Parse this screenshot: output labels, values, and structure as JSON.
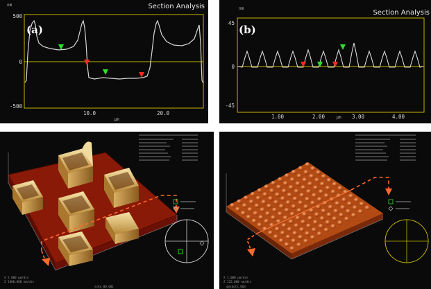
{
  "panels": {
    "a": {
      "header": "Section Analysis",
      "label": "(a)",
      "y_unit": "nm",
      "y_ticks": [
        "500",
        "0",
        "-500"
      ],
      "x_ticks": [
        "10.0",
        "20.0"
      ],
      "x_unit": "µm"
    },
    "b": {
      "header": "Section Analysis",
      "label": "(b)",
      "y_unit": "nm",
      "y_ticks": [
        "45",
        "0",
        "-45"
      ],
      "x_ticks": [
        "1.00",
        "2.00",
        "3.00",
        "4.00"
      ],
      "x_unit": "µm"
    },
    "c": {
      "scale_note_1": "X  5.000 µm/div",
      "scale_note_2": "Z  1000.000 nm/div",
      "file_name": "ssko_00.001"
    },
    "d": {
      "scale_note_1": "X  1.000 µm/div",
      "scale_note_2": "Z  125.000 nm/div",
      "file_name": "gnsdots.003"
    }
  },
  "colors": {
    "plot_bg": "#0a0a0a",
    "frame": "#c8b400",
    "trace": "#d8d8d8",
    "marker_green": "#2ee02e",
    "marker_red": "#ff2a1a",
    "arrow": "#ff6a2a",
    "surface_red": "#8a1a08",
    "pillar": "#e8c36a",
    "dots": "#d06a2a"
  },
  "icons": [
    "view-angle-icon",
    "light-angle-icon",
    "orientation-dial-icon",
    "direction-arrow-icon"
  ]
}
